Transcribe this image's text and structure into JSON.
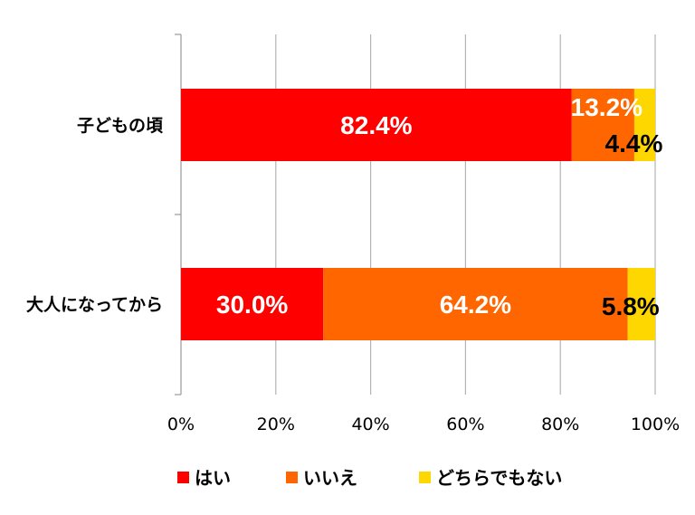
{
  "chart_data": {
    "type": "bar",
    "orientation": "horizontal",
    "stacked": "percent",
    "categories": [
      "子どもの頃",
      "大人になってから"
    ],
    "series": [
      {
        "name": "はい",
        "color": "#ff0000",
        "values": [
          82.4,
          30.0
        ],
        "labels": [
          "82.4%",
          "30.0%"
        ],
        "label_color": "#ffffff"
      },
      {
        "name": "いいえ",
        "color": "#ff6600",
        "values": [
          13.2,
          64.2
        ],
        "labels": [
          "13.2%",
          "64.2%"
        ],
        "label_color": "#ffffff"
      },
      {
        "name": "どちらでもない",
        "color": "#ffd700",
        "values": [
          4.4,
          5.8
        ],
        "labels": [
          "4.4%",
          "5.8%"
        ],
        "label_color": "#000000"
      }
    ],
    "x_ticks": [
      "0%",
      "20%",
      "40%",
      "60%",
      "80%",
      "100%"
    ],
    "xlim": [
      0,
      100
    ],
    "grid": true,
    "legend_position": "bottom"
  }
}
